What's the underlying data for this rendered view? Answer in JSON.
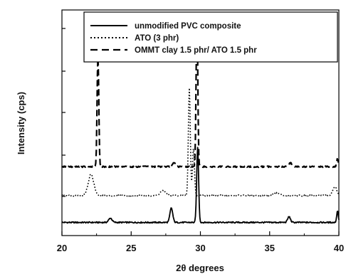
{
  "chart_data": {
    "type": "line",
    "xlabel": "2θ degrees",
    "ylabel": "Intensity (cps)",
    "xlim": [
      20,
      40
    ],
    "x_ticks": [
      "20",
      "25",
      "30",
      "35",
      "40"
    ],
    "y_ticks_labeled": false,
    "grid": false,
    "legend_position": "top-right",
    "series": [
      {
        "name": "unmodified PVC composite",
        "style": "solid",
        "color": "#000000",
        "peaks": [
          {
            "x": 23.5,
            "y": 4.5,
            "w": 0.12
          },
          {
            "x": 27.9,
            "y": 15,
            "w": 0.1
          },
          {
            "x": 29.8,
            "y": 78,
            "w": 0.07
          },
          {
            "x": 36.4,
            "y": 6,
            "w": 0.1
          },
          {
            "x": 39.9,
            "y": 12,
            "w": 0.06
          }
        ],
        "baseline": 7
      },
      {
        "name": "ATO (3 phr)",
        "style": "dotted",
        "color": "#000000",
        "peaks": [
          {
            "x": 22.1,
            "y": 22,
            "w": 0.2
          },
          {
            "x": 27.3,
            "y": 5,
            "w": 0.2
          },
          {
            "x": 29.2,
            "y": 112,
            "w": 0.07
          },
          {
            "x": 29.5,
            "y": 50,
            "w": 0.07
          },
          {
            "x": 35.5,
            "y": 3,
            "w": 0.2
          },
          {
            "x": 39.7,
            "y": 9,
            "w": 0.15
          }
        ],
        "baseline": 35
      },
      {
        "name": "OMMT clay 1.5 phr/ ATO 1.5 phr",
        "style": "dashed",
        "color": "#000000",
        "peaks": [
          {
            "x": 22.6,
            "y": 118,
            "w": 0.06
          },
          {
            "x": 28.1,
            "y": 4,
            "w": 0.1
          },
          {
            "x": 29.75,
            "y": 160,
            "w": 0.06
          },
          {
            "x": 36.5,
            "y": 4,
            "w": 0.1
          },
          {
            "x": 39.9,
            "y": 8,
            "w": 0.06
          }
        ],
        "baseline": 65
      }
    ]
  }
}
